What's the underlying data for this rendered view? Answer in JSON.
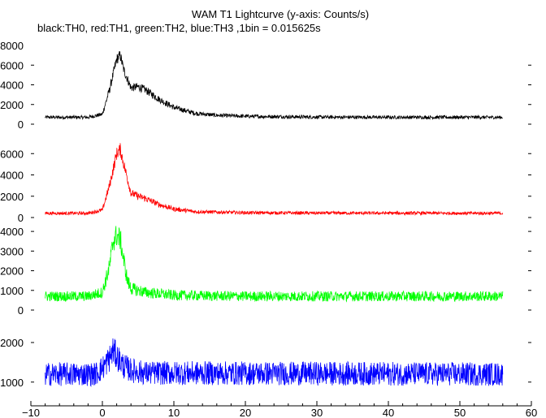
{
  "title": "WAM T1 Lightcurve (y-axis: Counts/s)",
  "subtitle": "black:TH0, red:TH1, green:TH2, blue:TH3 ,1bin = 0.015625s",
  "chart_data": {
    "type": "line",
    "title": "WAM T1 Lightcurve (y-axis: Counts/s)",
    "subtitle": "black:TH0, red:TH1, green:TH2, blue:TH3 ,1bin = 0.015625s",
    "x_ticks": [
      -10,
      0,
      10,
      20,
      30,
      40,
      50,
      60
    ],
    "xlim": [
      -10,
      60
    ],
    "data_x_range": [
      -8,
      56
    ],
    "panels": [
      {
        "series": "TH0",
        "color": "#000000",
        "ylim": [
          0,
          8000
        ],
        "y_ticks": [
          0,
          2000,
          4000,
          6000
        ],
        "top_tick_label": "8000",
        "x": [
          -8,
          -2,
          0,
          1,
          2,
          2.5,
          3,
          4,
          5,
          6,
          8,
          10,
          13,
          16,
          20,
          30,
          40,
          56
        ],
        "values": [
          700,
          700,
          1000,
          3500,
          6600,
          7000,
          5500,
          3700,
          3800,
          3500,
          2500,
          1700,
          1100,
          900,
          800,
          720,
          700,
          700
        ],
        "noise": 180
      },
      {
        "series": "TH1",
        "color": "#ff0000",
        "ylim": [
          0,
          8000
        ],
        "y_ticks": [
          0,
          2000,
          4000,
          6000
        ],
        "x": [
          -8,
          -2,
          0,
          1,
          2,
          2.5,
          3,
          4,
          5,
          6,
          8,
          10,
          13,
          20,
          30,
          56
        ],
        "values": [
          400,
          400,
          700,
          3000,
          6000,
          6400,
          5000,
          2300,
          2000,
          1800,
          1200,
          800,
          550,
          450,
          420,
          400
        ],
        "noise": 150
      },
      {
        "series": "TH2",
        "color": "#00ff00",
        "ylim": [
          0,
          4500
        ],
        "y_ticks": [
          0,
          1000,
          2000,
          3000,
          4000
        ],
        "x": [
          -8,
          -2,
          0,
          1,
          1.5,
          2,
          2.5,
          3,
          3.5,
          4,
          6,
          10,
          20,
          56
        ],
        "values": [
          700,
          700,
          900,
          2200,
          3500,
          3800,
          3600,
          2500,
          1500,
          1100,
          900,
          750,
          700,
          700
        ],
        "noise": 260
      },
      {
        "series": "TH3",
        "color": "#0000ff",
        "ylim": [
          400,
          2800
        ],
        "y_ticks": [
          1000,
          2000
        ],
        "x": [
          -8,
          -1,
          0,
          1,
          1.5,
          2,
          3,
          4,
          6,
          56
        ],
        "values": [
          1200,
          1200,
          1350,
          1600,
          1800,
          1650,
          1400,
          1300,
          1230,
          1200
        ],
        "noise": 300
      }
    ]
  }
}
